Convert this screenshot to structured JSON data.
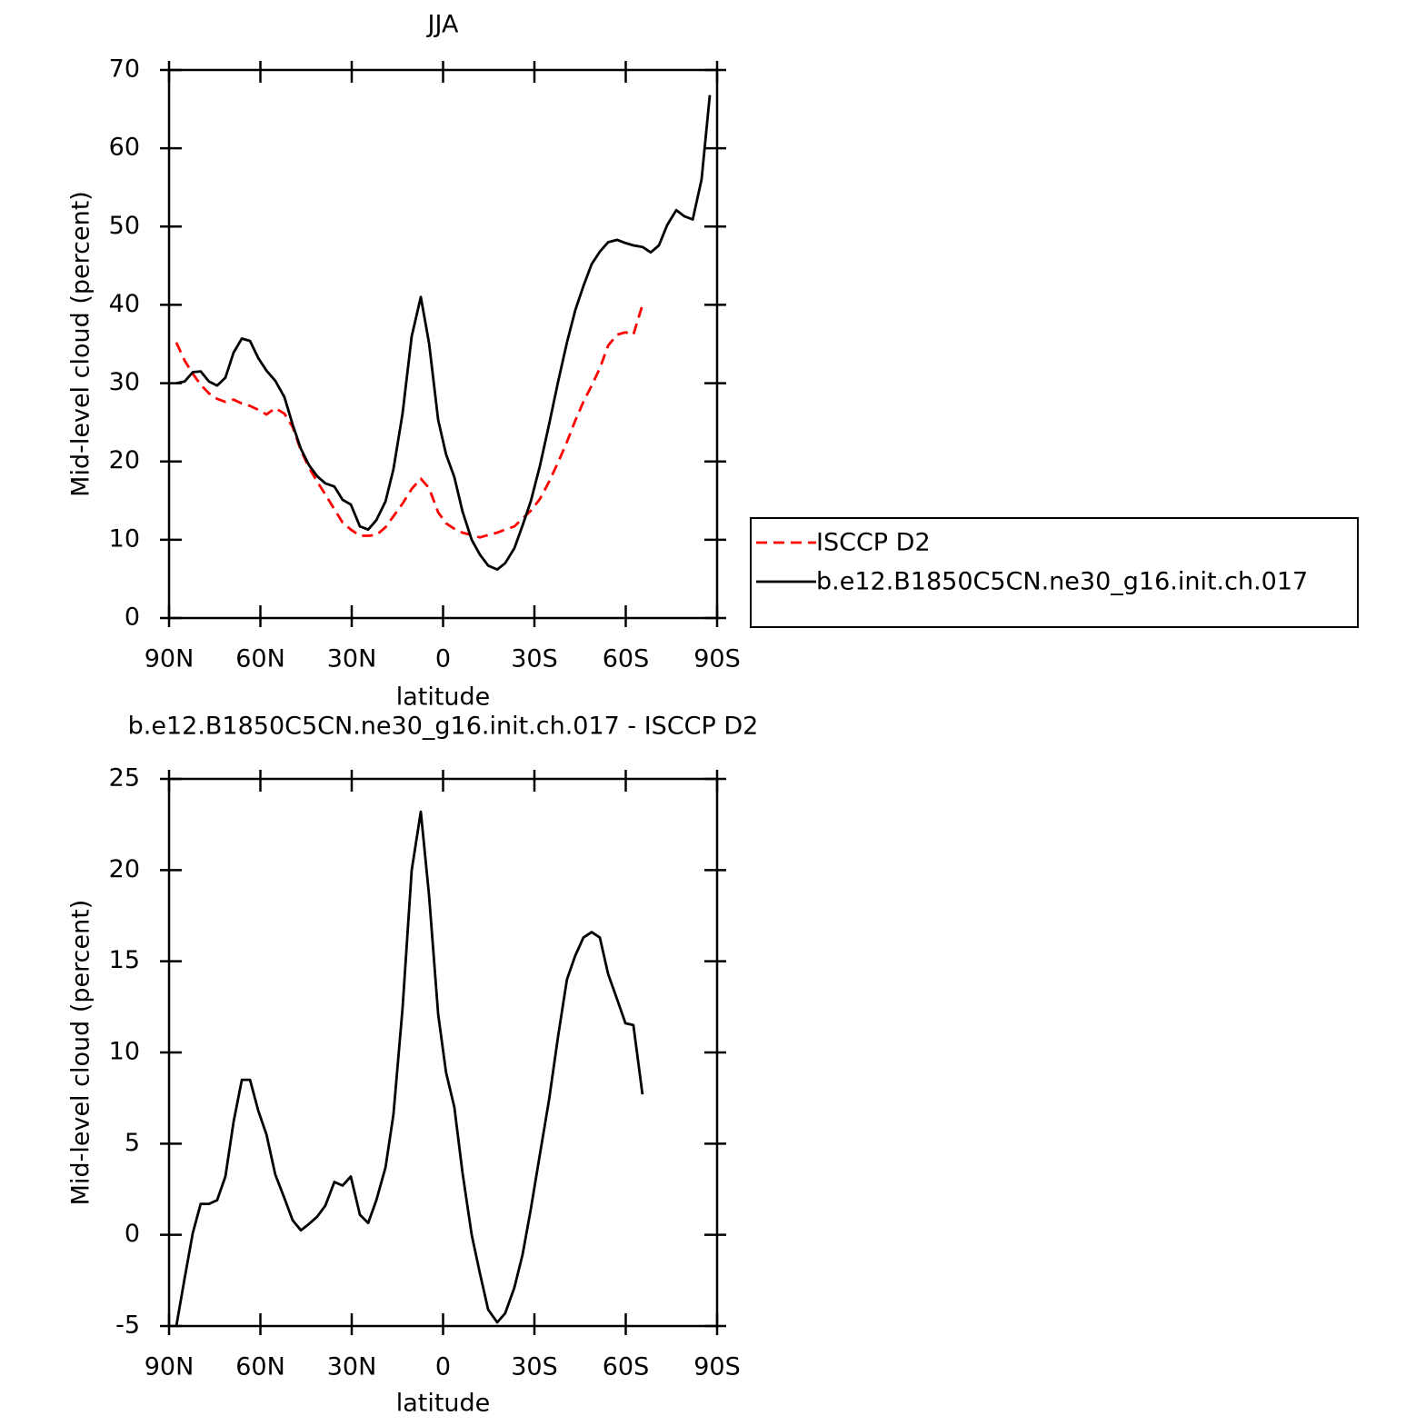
{
  "chart_data": [
    {
      "type": "line",
      "title": "JJA",
      "xlabel": "latitude",
      "ylabel": "Mid-level cloud (percent)",
      "x": [
        87.6,
        84.9,
        82.2,
        79.6,
        76.9,
        74.2,
        71.5,
        68.8,
        66.1,
        63.4,
        60.7,
        58.0,
        55.1,
        52.1,
        49.4,
        46.7,
        44.0,
        41.3,
        38.7,
        35.7,
        33.0,
        30.3,
        27.3,
        24.6,
        21.9,
        18.9,
        16.3,
        13.3,
        10.3,
        7.3,
        4.6,
        1.6,
        -1.0,
        -3.7,
        -6.4,
        -9.4,
        -12.1,
        -14.8,
        -17.8,
        -20.4,
        -23.4,
        -26.1,
        -28.8,
        -31.8,
        -34.8,
        -37.8,
        -40.7,
        -43.4,
        -46.1,
        -48.8,
        -51.5,
        -54.2,
        -57.2,
        -59.9,
        -62.5,
        -65.5,
        -68.2,
        -70.9,
        -73.6,
        -76.6,
        -79.3,
        -82.0,
        -84.9,
        -87.6
      ],
      "series": [
        {
          "name": "ISCCP D2",
          "color": "#ff0000",
          "dash": true,
          "values": [
            35.2,
            32.9,
            31.2,
            29.8,
            28.7,
            28.0,
            27.6,
            27.9,
            27.4,
            27.1,
            26.6,
            26.0,
            26.8,
            26.1,
            24.4,
            21.4,
            19.2,
            17.4,
            15.8,
            13.9,
            12.2,
            11.3,
            10.5,
            10.5,
            10.6,
            11.6,
            13.0,
            14.6,
            16.5,
            17.8,
            16.6,
            13.5,
            12.1,
            11.4,
            10.9,
            10.6,
            10.3,
            10.6,
            10.9,
            11.3,
            11.7,
            12.7,
            13.7,
            15.2,
            17.4,
            19.9,
            22.5,
            25.2,
            27.6,
            29.7,
            31.9,
            34.8,
            36.2,
            36.5,
            36.2,
            40.0,
            null,
            null,
            null,
            null,
            null,
            null,
            null,
            null
          ]
        },
        {
          "name": "b.e12.B1850C5CN.ne30_g16.init.ch.017",
          "color": "#000000",
          "dash": false,
          "values": [
            30.0,
            30.2,
            31.4,
            31.5,
            30.2,
            29.7,
            30.7,
            33.9,
            35.7,
            35.4,
            33.2,
            31.6,
            30.3,
            28.2,
            24.7,
            21.6,
            19.5,
            18.1,
            17.2,
            16.8,
            15.1,
            14.5,
            11.7,
            11.3,
            12.5,
            14.9,
            19.0,
            26.1,
            36.0,
            41.0,
            35.1,
            25.3,
            20.9,
            18.0,
            13.6,
            10.0,
            8.1,
            6.7,
            6.2,
            7.0,
            8.9,
            11.8,
            14.9,
            19.4,
            24.7,
            30.2,
            35.2,
            39.3,
            42.4,
            45.2,
            46.8,
            48.0,
            48.3,
            47.9,
            47.6,
            47.4,
            46.7,
            47.6,
            50.2,
            52.1,
            51.3,
            50.9,
            56.0,
            66.8
          ]
        }
      ],
      "xlim": [
        90,
        -90
      ],
      "xticks": [
        {
          "value": 90,
          "label": "90N"
        },
        {
          "value": 60,
          "label": "60N"
        },
        {
          "value": 30,
          "label": "30N"
        },
        0,
        {
          "value": -30,
          "label": "30S"
        },
        {
          "value": -60,
          "label": "60S"
        },
        {
          "value": -90,
          "label": "90S"
        }
      ],
      "ylim": [
        0,
        70
      ],
      "yticks": [
        0,
        10,
        20,
        30,
        40,
        50,
        60,
        70
      ],
      "legend": "right"
    },
    {
      "type": "line",
      "title": "b.e12.B1850C5CN.ne30_g16.init.ch.017 - ISCCP D2",
      "xlabel": "latitude",
      "ylabel": "Mid-level cloud (percent)",
      "x": [
        87.6,
        84.9,
        82.2,
        79.6,
        76.9,
        74.2,
        71.5,
        68.8,
        66.1,
        63.4,
        60.7,
        58.0,
        55.1,
        52.1,
        49.4,
        46.7,
        44.0,
        41.3,
        38.7,
        35.7,
        33.0,
        30.3,
        27.3,
        24.6,
        21.9,
        18.9,
        16.3,
        13.3,
        10.3,
        7.3,
        4.6,
        1.6,
        -1.0,
        -3.7,
        -6.4,
        -9.4,
        -12.1,
        -14.8,
        -17.8,
        -20.4,
        -23.4,
        -26.1,
        -28.8,
        -31.8,
        -34.8,
        -37.8,
        -40.7,
        -43.4,
        -46.1,
        -48.8,
        -51.5,
        -54.2,
        -57.2,
        -59.9,
        -62.5,
        -65.5
      ],
      "series": [
        {
          "color": "#000000",
          "dash": false,
          "values": [
            -5.0,
            -2.4,
            0.1,
            1.7,
            1.7,
            1.9,
            3.2,
            6.2,
            8.5,
            8.5,
            6.8,
            5.5,
            3.3,
            2.0,
            0.8,
            0.25,
            0.6,
            1.0,
            1.6,
            2.9,
            2.7,
            3.2,
            1.1,
            0.65,
            1.9,
            3.7,
            6.6,
            12.4,
            20.0,
            23.2,
            18.6,
            12.1,
            8.9,
            7.0,
            3.4,
            0.0,
            -2.1,
            -4.1,
            -4.8,
            -4.3,
            -2.9,
            -1.1,
            1.4,
            4.4,
            7.4,
            10.9,
            14.0,
            15.3,
            16.3,
            16.6,
            16.3,
            14.3,
            12.9,
            11.6,
            11.5,
            7.7
          ]
        }
      ],
      "xlim": [
        90,
        -90
      ],
      "xticks": [
        {
          "value": 90,
          "label": "90N"
        },
        {
          "value": 60,
          "label": "60N"
        },
        {
          "value": 30,
          "label": "30N"
        },
        0,
        {
          "value": -30,
          "label": "30S"
        },
        {
          "value": -60,
          "label": "60S"
        },
        {
          "value": -90,
          "label": "90S"
        }
      ],
      "ylim": [
        -5,
        25
      ],
      "yticks": [
        -5,
        0,
        5,
        10,
        15,
        20,
        25
      ]
    }
  ]
}
